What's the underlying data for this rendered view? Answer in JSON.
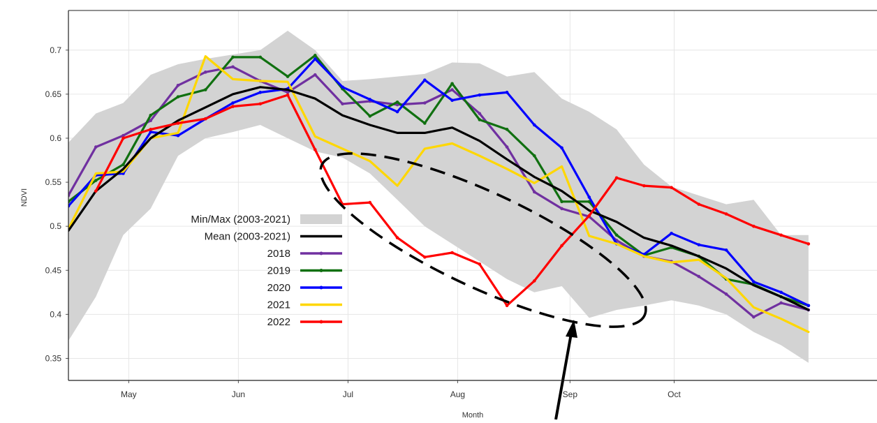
{
  "chart_data": {
    "type": "line",
    "title": "",
    "xlabel": "Month",
    "ylabel": "NDVI",
    "x_unit": "week",
    "xlim": [
      0,
      29.5
    ],
    "ylim": [
      0.325,
      0.745
    ],
    "grid": true,
    "legend_position": "center-left",
    "x_ticks": [
      {
        "label": "May",
        "x": 2.2
      },
      {
        "label": "Jun",
        "x": 6.2
      },
      {
        "label": "Jul",
        "x": 10.2
      },
      {
        "label": "Aug",
        "x": 14.2
      },
      {
        "label": "Sep",
        "x": 18.3
      },
      {
        "label": "Oct",
        "x": 22.1
      }
    ],
    "y_ticks": [
      0.35,
      0.4,
      0.45,
      0.5,
      0.55,
      0.6,
      0.65,
      0.7
    ],
    "band": {
      "name": "Min/Max (2003-2021)",
      "color": "#d3d3d3",
      "x": [
        0,
        1,
        2,
        3,
        4,
        5,
        6,
        7,
        8,
        9,
        10,
        11,
        12,
        13,
        14,
        15,
        16,
        17,
        18,
        19,
        20,
        21,
        22,
        23,
        24,
        25,
        26,
        27
      ],
      "min": [
        0.37,
        0.42,
        0.49,
        0.52,
        0.58,
        0.6,
        0.607,
        0.615,
        0.6,
        0.585,
        0.578,
        0.56,
        0.53,
        0.5,
        0.48,
        0.46,
        0.44,
        0.425,
        0.432,
        0.396,
        0.405,
        0.41,
        0.416,
        0.41,
        0.4,
        0.38,
        0.365,
        0.345
      ],
      "max": [
        0.595,
        0.628,
        0.64,
        0.672,
        0.684,
        0.69,
        0.695,
        0.7,
        0.722,
        0.7,
        0.665,
        0.667,
        0.67,
        0.673,
        0.686,
        0.685,
        0.67,
        0.675,
        0.645,
        0.63,
        0.61,
        0.57,
        0.545,
        0.535,
        0.525,
        0.53,
        0.49,
        0.49
      ]
    },
    "x": [
      0,
      1,
      2,
      3,
      4,
      5,
      6,
      7,
      8,
      9,
      10,
      11,
      12,
      13,
      14,
      15,
      16,
      17,
      18,
      19,
      20,
      21,
      22,
      23,
      24,
      25,
      26,
      27
    ],
    "series": [
      {
        "name": "Mean (2003-2021)",
        "color": "#000000",
        "markers": false,
        "values": [
          0.495,
          0.54,
          0.565,
          0.6,
          0.62,
          0.635,
          0.65,
          0.658,
          0.655,
          0.645,
          0.626,
          0.615,
          0.606,
          0.606,
          0.612,
          0.597,
          0.576,
          0.556,
          0.54,
          0.518,
          0.505,
          0.487,
          0.478,
          0.466,
          0.452,
          0.433,
          0.42,
          0.405
        ]
      },
      {
        "name": "2018",
        "color": "#7030a0",
        "markers": true,
        "values": [
          0.535,
          0.59,
          0.603,
          0.62,
          0.66,
          0.675,
          0.681,
          0.665,
          0.652,
          0.672,
          0.639,
          0.642,
          0.638,
          0.64,
          0.655,
          0.628,
          0.59,
          0.539,
          0.52,
          0.511,
          0.484,
          0.466,
          0.46,
          0.443,
          0.423,
          0.397,
          0.413,
          0.405
        ]
      },
      {
        "name": "2019",
        "color": "#107010",
        "markers": true,
        "values": [
          0.528,
          0.552,
          0.57,
          0.626,
          0.647,
          0.655,
          0.692,
          0.692,
          0.67,
          0.694,
          0.656,
          0.625,
          0.641,
          0.617,
          0.662,
          0.621,
          0.61,
          0.58,
          0.528,
          0.528,
          0.49,
          0.467,
          0.476,
          0.466,
          0.44,
          0.434,
          0.42,
          0.41
        ]
      },
      {
        "name": "2020",
        "color": "#0000ff",
        "markers": true,
        "values": [
          0.523,
          0.558,
          0.56,
          0.607,
          0.603,
          0.622,
          0.64,
          0.652,
          0.656,
          0.69,
          0.658,
          0.644,
          0.63,
          0.666,
          0.643,
          0.649,
          0.652,
          0.615,
          0.589,
          0.533,
          0.48,
          0.468,
          0.492,
          0.479,
          0.473,
          0.437,
          0.425,
          0.41
        ]
      },
      {
        "name": "2021",
        "color": "#ffd700",
        "markers": false,
        "values": [
          0.497,
          0.56,
          0.562,
          0.6,
          0.606,
          0.693,
          0.667,
          0.665,
          0.664,
          0.602,
          0.588,
          0.574,
          0.546,
          0.588,
          0.594,
          0.58,
          0.565,
          0.549,
          0.568,
          0.489,
          0.48,
          0.466,
          0.459,
          0.462,
          0.441,
          0.408,
          0.395,
          0.38
        ]
      },
      {
        "name": "2022",
        "color": "#ff0000",
        "markers": true,
        "values": [
          null,
          0.54,
          0.6,
          0.61,
          0.617,
          0.622,
          0.636,
          0.639,
          0.649,
          0.587,
          0.525,
          0.527,
          0.487,
          0.465,
          0.47,
          0.457,
          0.41,
          0.438,
          0.478,
          0.512,
          0.555,
          0.546,
          0.544,
          0.525,
          0.514,
          0.5,
          0.49,
          0.48
        ]
      }
    ],
    "legend": [
      {
        "label": "Min/Max (2003-2021)",
        "color": "#d3d3d3",
        "kind": "band"
      },
      {
        "label": "Mean (2003-2021)",
        "color": "#000000",
        "kind": "line"
      },
      {
        "label": "2018",
        "color": "#7030a0",
        "kind": "line"
      },
      {
        "label": "2019",
        "color": "#107010",
        "kind": "line"
      },
      {
        "label": "2020",
        "color": "#0000ff",
        "kind": "line"
      },
      {
        "label": "2021",
        "color": "#ffd700",
        "kind": "line"
      },
      {
        "label": "2022",
        "color": "#ff0000",
        "kind": "line"
      }
    ],
    "annotations": [
      {
        "kind": "dashed-ellipse",
        "color": "#000000"
      },
      {
        "kind": "arrow",
        "color": "#000000"
      }
    ]
  }
}
